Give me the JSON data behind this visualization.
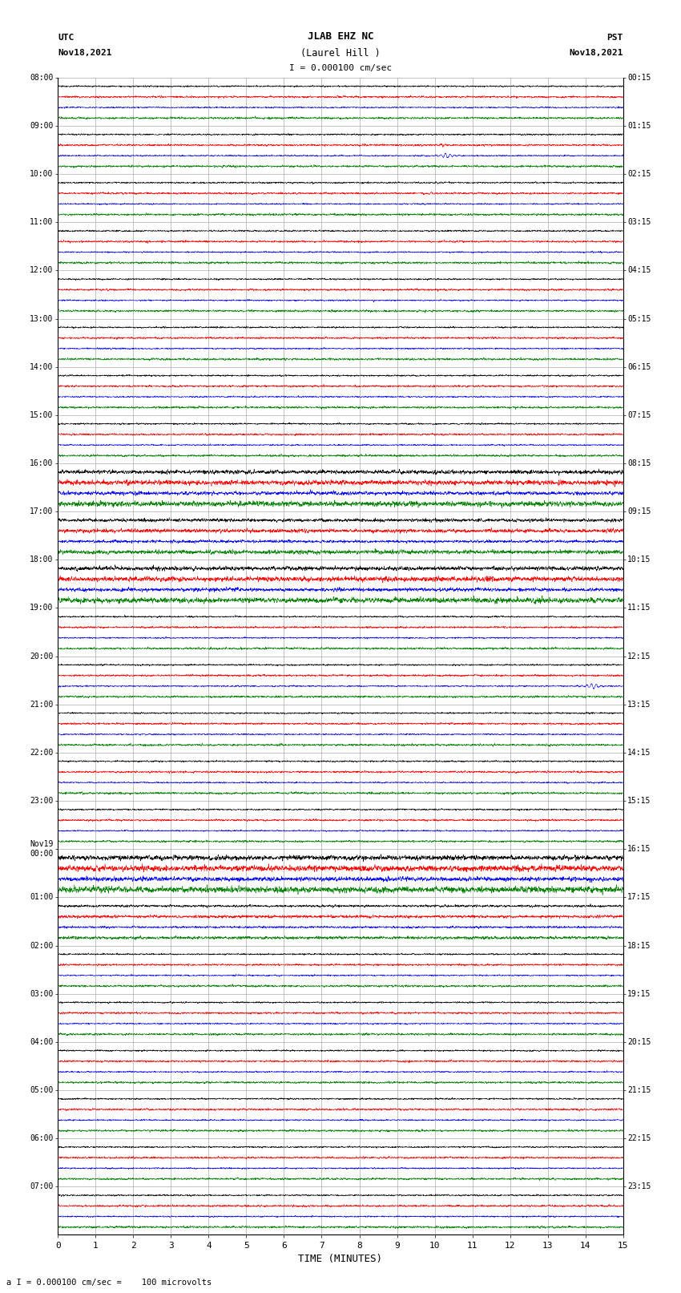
{
  "title_line1": "JLAB EHZ NC",
  "title_line2": "(Laurel Hill )",
  "scale_label": "I = 0.000100 cm/sec",
  "bottom_label": "a I = 0.000100 cm/sec =    100 microvolts",
  "utc_label": "UTC",
  "utc_date": "Nov18,2021",
  "pst_label": "PST",
  "pst_date": "Nov18,2021",
  "xlabel": "TIME (MINUTES)",
  "left_times": [
    "08:00",
    "09:00",
    "10:00",
    "11:00",
    "12:00",
    "13:00",
    "14:00",
    "15:00",
    "16:00",
    "17:00",
    "18:00",
    "19:00",
    "20:00",
    "21:00",
    "22:00",
    "23:00",
    "Nov19\n00:00",
    "01:00",
    "02:00",
    "03:00",
    "04:00",
    "05:00",
    "06:00",
    "07:00"
  ],
  "right_times": [
    "00:15",
    "01:15",
    "02:15",
    "03:15",
    "04:15",
    "05:15",
    "06:15",
    "07:15",
    "08:15",
    "09:15",
    "10:15",
    "11:15",
    "12:15",
    "13:15",
    "14:15",
    "15:15",
    "16:15",
    "17:15",
    "18:15",
    "19:15",
    "20:15",
    "21:15",
    "22:15",
    "23:15"
  ],
  "n_rows": 24,
  "traces_per_row": 4,
  "colors": [
    "black",
    "red",
    "blue",
    "green"
  ],
  "bg_color": "#ffffff",
  "grid_color": "#aaaaaa",
  "minutes": 15,
  "samples_per_minute": 200
}
